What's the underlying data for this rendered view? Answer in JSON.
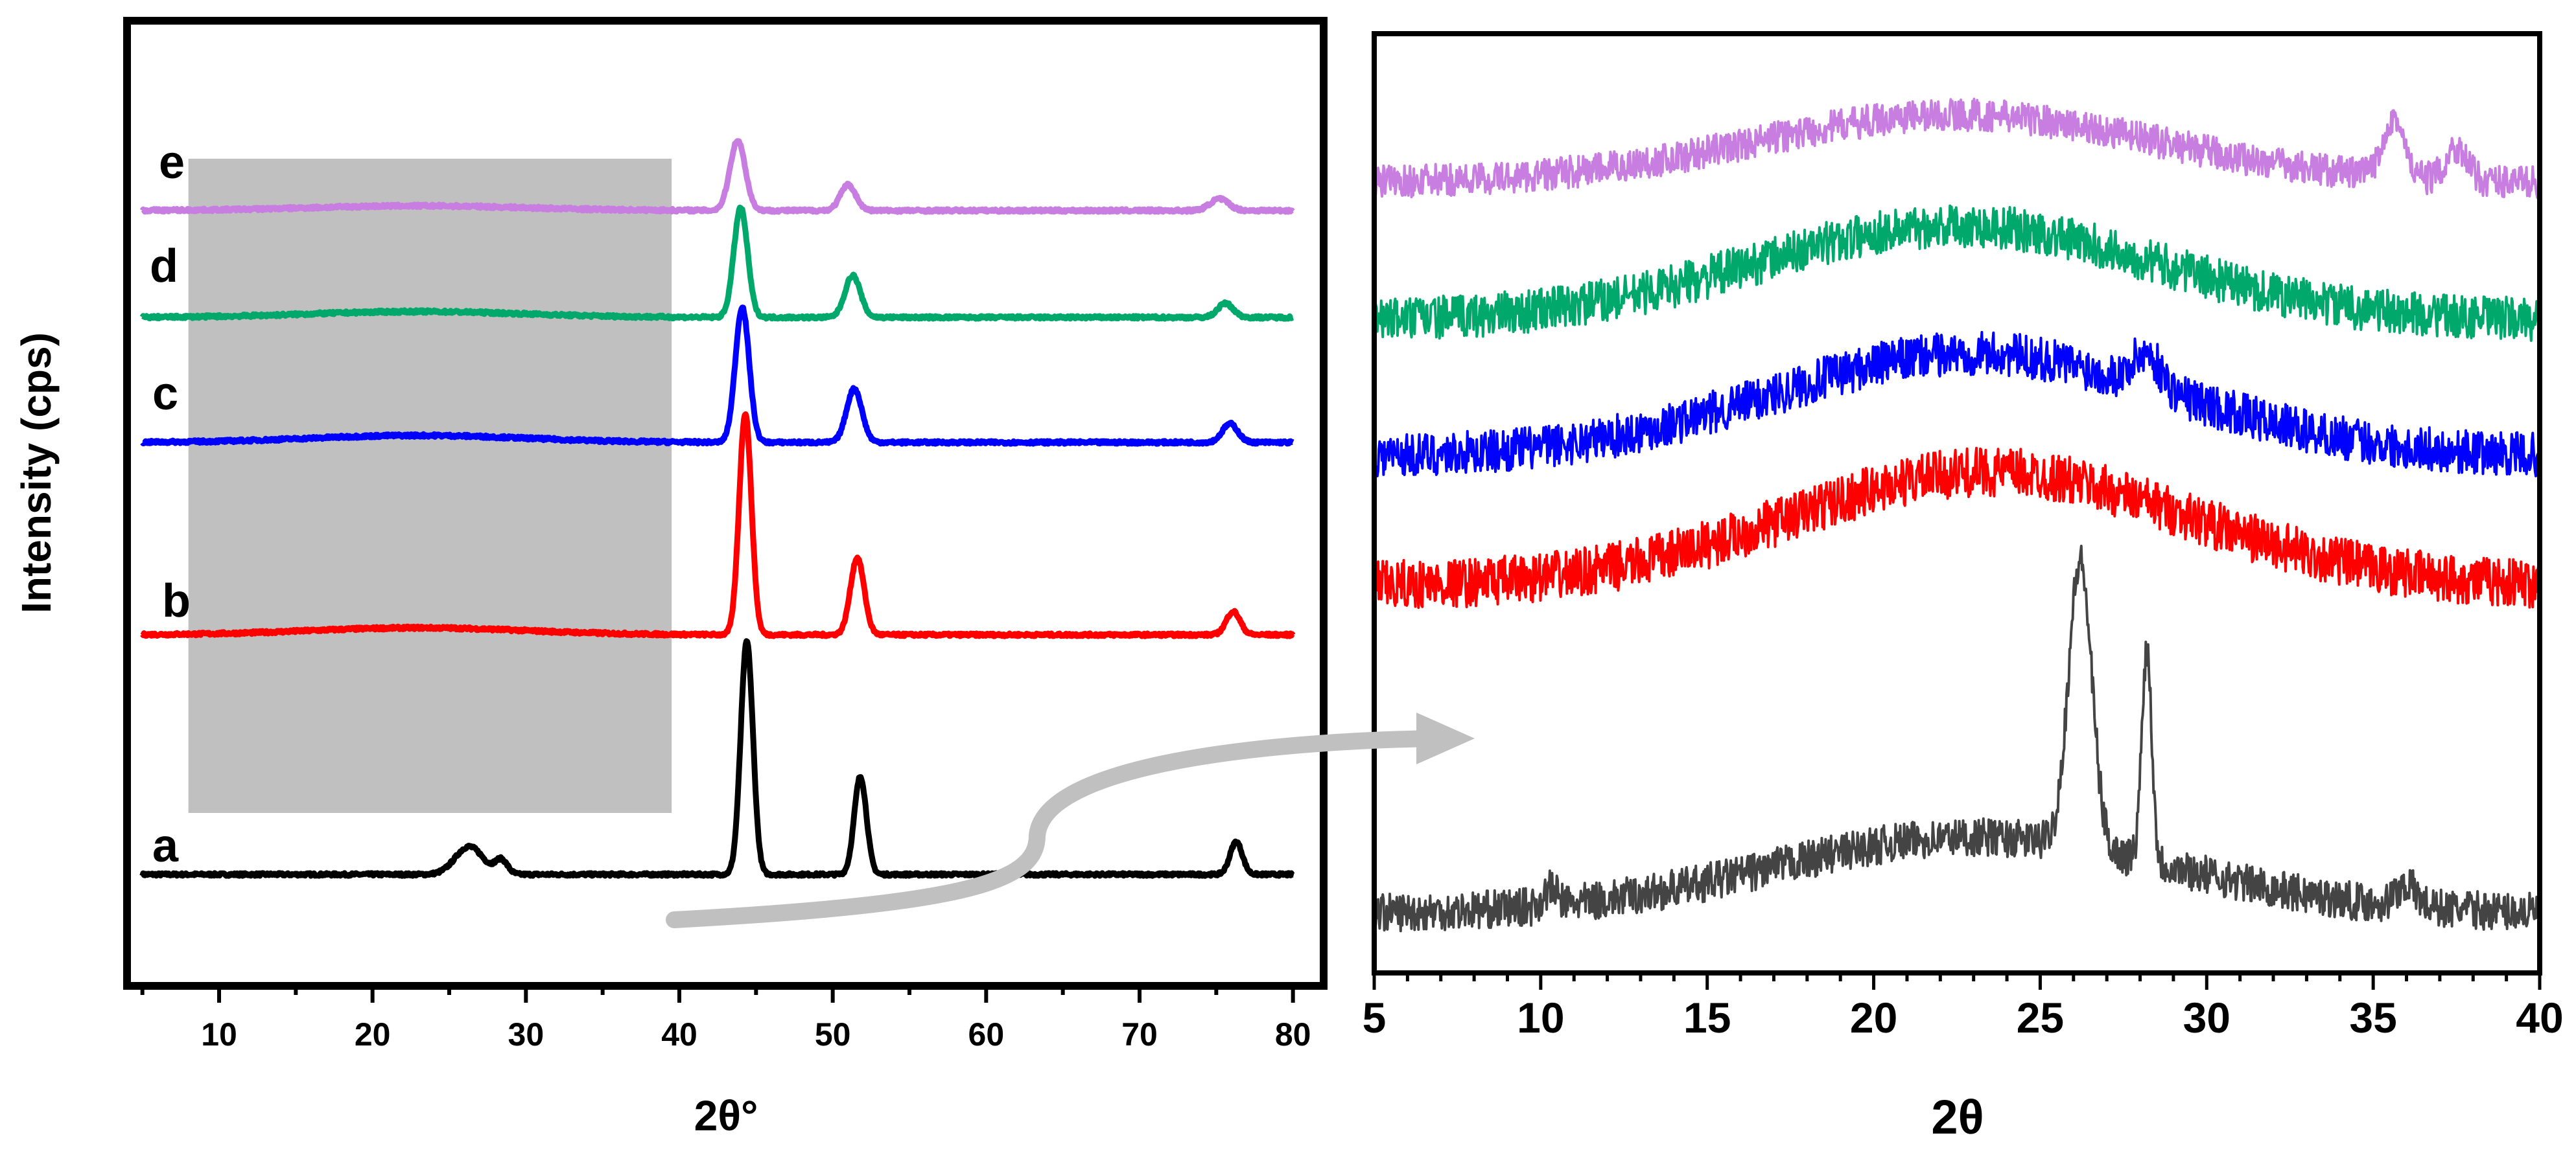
{
  "chart_data": [
    {
      "type": "line",
      "panel": "left",
      "title": "",
      "xlabel": "2θ°",
      "ylabel": "Intensity (cps)",
      "xlim": [
        4,
        82
      ],
      "xticks": [
        10,
        20,
        30,
        40,
        50,
        60,
        70,
        80
      ],
      "xtick_labels": [
        "10",
        "20",
        "30",
        "40",
        "50",
        "60",
        "70",
        "80"
      ],
      "y_axis_ticks": false,
      "highlight_region": {
        "x_start": 8,
        "x_end": 39.5,
        "color": "#c0c0c0",
        "meaning": "region enlarged in right panel"
      },
      "series": [
        {
          "name": "a",
          "label": "a",
          "color": "#000000",
          "offset": 0,
          "x_range": [
            5,
            80
          ],
          "peaks": [
            {
              "x": 26.3,
              "height": 0.12,
              "width": 0.9
            },
            {
              "x": 28.4,
              "height": 0.06,
              "width": 0.4
            },
            {
              "x": 44.4,
              "height": 1.0,
              "width": 0.4
            },
            {
              "x": 51.8,
              "height": 0.42,
              "width": 0.4
            },
            {
              "x": 76.3,
              "height": 0.14,
              "width": 0.4
            }
          ]
        },
        {
          "name": "b",
          "label": "b",
          "color": "#ff0000",
          "offset": 1,
          "x_range": [
            5,
            80
          ],
          "peaks": [
            {
              "x": 23,
              "height": 0.03,
              "width": 7
            },
            {
              "x": 44.3,
              "height": 0.95,
              "width": 0.4
            },
            {
              "x": 51.6,
              "height": 0.33,
              "width": 0.45
            },
            {
              "x": 76.1,
              "height": 0.1,
              "width": 0.45
            }
          ]
        },
        {
          "name": "c",
          "label": "c",
          "color": "#0000ff",
          "offset": 2,
          "x_range": [
            5,
            80
          ],
          "peaks": [
            {
              "x": 23,
              "height": 0.03,
              "width": 7
            },
            {
              "x": 44.1,
              "height": 0.58,
              "width": 0.45
            },
            {
              "x": 51.4,
              "height": 0.23,
              "width": 0.5
            },
            {
              "x": 75.9,
              "height": 0.08,
              "width": 0.5
            }
          ]
        },
        {
          "name": "d",
          "label": "d",
          "color": "#00a86b",
          "offset": 3,
          "x_range": [
            5,
            80
          ],
          "peaks": [
            {
              "x": 23,
              "height": 0.025,
              "width": 7
            },
            {
              "x": 44.0,
              "height": 0.47,
              "width": 0.45
            },
            {
              "x": 51.3,
              "height": 0.18,
              "width": 0.5
            },
            {
              "x": 75.6,
              "height": 0.06,
              "width": 0.5
            }
          ]
        },
        {
          "name": "e",
          "label": "e",
          "color": "#c77ee0",
          "offset": 4,
          "x_range": [
            5,
            80
          ],
          "peaks": [
            {
              "x": 23,
              "height": 0.02,
              "width": 7
            },
            {
              "x": 43.8,
              "height": 0.3,
              "width": 0.5
            },
            {
              "x": 51.0,
              "height": 0.11,
              "width": 0.5
            },
            {
              "x": 75.2,
              "height": 0.05,
              "width": 0.6
            }
          ]
        }
      ]
    },
    {
      "type": "line",
      "panel": "right",
      "title": "",
      "xlabel": "2θ",
      "ylabel": "",
      "xlim": [
        5,
        40
      ],
      "xticks": [
        5,
        10,
        15,
        20,
        25,
        30,
        35,
        40
      ],
      "xtick_labels": [
        "5",
        "10",
        "15",
        "20",
        "25",
        "30",
        "35",
        "40"
      ],
      "y_axis_ticks": false,
      "series": [
        {
          "name": "a",
          "color": "#444444",
          "baseline": 0.0,
          "hump_center": 23,
          "hump_height": 0.28,
          "hump_width": 6,
          "noise": 0.07,
          "peaks": [
            {
              "x": 26.2,
              "height": 1.05,
              "width": 0.35
            },
            {
              "x": 28.2,
              "height": 0.78,
              "width": 0.15
            },
            {
              "x": 36.0,
              "height": 0.08,
              "width": 0.3
            },
            {
              "x": 10.3,
              "height": 0.06,
              "width": 0.2
            }
          ]
        },
        {
          "name": "b",
          "color": "#ff0000",
          "baseline": 0.95,
          "hump_center": 23.5,
          "hump_height": 0.42,
          "hump_width": 6,
          "noise": 0.09,
          "peaks": []
        },
        {
          "name": "c",
          "color": "#0000ff",
          "baseline": 1.45,
          "hump_center": 23,
          "hump_height": 0.38,
          "hump_width": 6,
          "noise": 0.08,
          "peaks": [
            {
              "x": 28.2,
              "height": 0.12,
              "width": 0.4
            }
          ]
        },
        {
          "name": "d",
          "color": "#00a86b",
          "baseline": 1.85,
          "hump_center": 22.5,
          "hump_height": 0.35,
          "hump_width": 6,
          "noise": 0.08,
          "peaks": []
        },
        {
          "name": "e",
          "color": "#c77ee0",
          "baseline": 2.3,
          "hump_center": 22.5,
          "hump_height": 0.25,
          "hump_width": 6,
          "noise": 0.06,
          "peaks": [
            {
              "x": 35.6,
              "height": 0.22,
              "width": 0.3
            },
            {
              "x": 37.5,
              "height": 0.12,
              "width": 0.3
            }
          ]
        }
      ]
    }
  ],
  "annotation": {
    "type": "arrow",
    "meaning": "zoom from shaded region of left panel to right panel",
    "color": "#c0c0c0"
  }
}
